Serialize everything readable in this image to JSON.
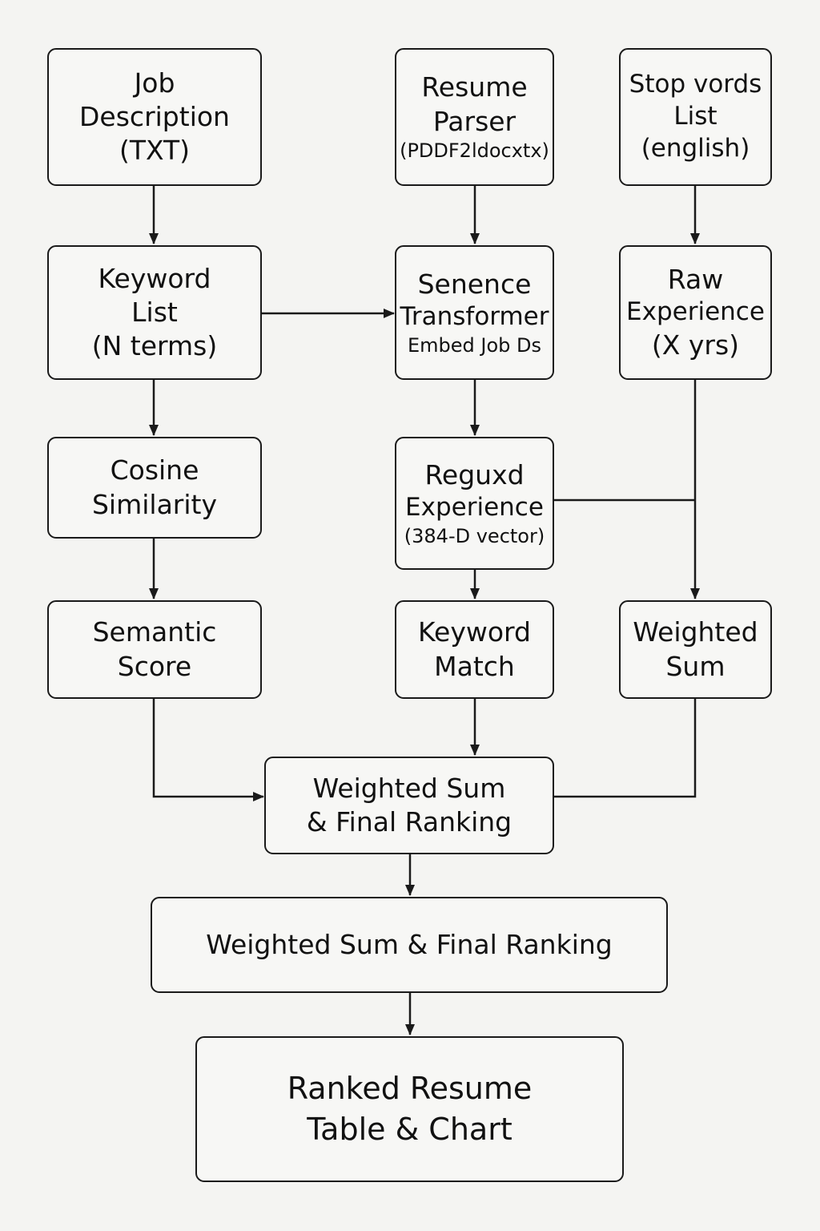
{
  "diagram": {
    "nodes": {
      "job_description": {
        "lines": [
          "Job",
          "Description",
          "(TXT)"
        ]
      },
      "resume_parser": {
        "lines": [
          "Resume",
          "Parser",
          "(PDDF2ldocxtx)"
        ]
      },
      "stop_words": {
        "lines": [
          "Stop vords",
          "List",
          "(english)"
        ]
      },
      "keyword_list": {
        "lines": [
          "Keyword",
          "List",
          "(N terms)"
        ]
      },
      "sentence_transformer": {
        "lines": [
          "Senence",
          "Transformer",
          "Embed Job Ds"
        ]
      },
      "raw_experience": {
        "lines": [
          "Raw",
          "Experience",
          "(X yrs)"
        ]
      },
      "cosine_similarity": {
        "lines": [
          "Cosine",
          "Similarity"
        ]
      },
      "required_experience": {
        "lines": [
          "Reguxd",
          "Experience",
          "(384-D vector)"
        ]
      },
      "semantic_score": {
        "lines": [
          "Semantic",
          "Score"
        ]
      },
      "keyword_match": {
        "lines": [
          "Keyword",
          "Match"
        ]
      },
      "weighted_sum_small": {
        "lines": [
          "Weighted",
          "Sum"
        ]
      },
      "weighted_sum_final": {
        "lines": [
          "Weighted Sum",
          "& Final Ranking"
        ]
      },
      "weighted_sum_final_wide": {
        "lines": [
          "Weighted Sum & Final Ranking"
        ]
      },
      "ranked_resume": {
        "lines": [
          "Ranked Resume",
          "Table & Chart"
        ]
      }
    },
    "edges": [
      {
        "from": "Job Description",
        "to": "Keyword List"
      },
      {
        "from": "Resume Parser",
        "to": "Sentence Transformer"
      },
      {
        "from": "Stop words List",
        "to": "Raw Experience"
      },
      {
        "from": "Keyword List",
        "to": "Sentence Transformer"
      },
      {
        "from": "Keyword List",
        "to": "Cosine Similarity"
      },
      {
        "from": "Sentence Transformer",
        "to": "Required Experience"
      },
      {
        "from": "Raw Experience",
        "to": "Weighted Sum"
      },
      {
        "from": "Required Experience",
        "to": "Weighted Sum"
      },
      {
        "from": "Cosine Similarity",
        "to": "Semantic Score"
      },
      {
        "from": "Required Experience",
        "to": "Keyword Match"
      },
      {
        "from": "Semantic Score",
        "to": "Weighted Sum & Final Ranking"
      },
      {
        "from": "Keyword Match",
        "to": "Weighted Sum & Final Ranking"
      },
      {
        "from": "Weighted Sum",
        "to": "Weighted Sum & Final Ranking"
      },
      {
        "from": "Weighted Sum & Final Ranking",
        "to": "Weighted Sum & Final Ranking (wide)"
      },
      {
        "from": "Weighted Sum & Final Ranking (wide)",
        "to": "Ranked Resume Table & Chart"
      }
    ],
    "colors": {
      "background": "#f4f4f2",
      "box_fill": "#f7f7f5",
      "stroke": "#1a1a1a",
      "text": "#111111"
    }
  }
}
